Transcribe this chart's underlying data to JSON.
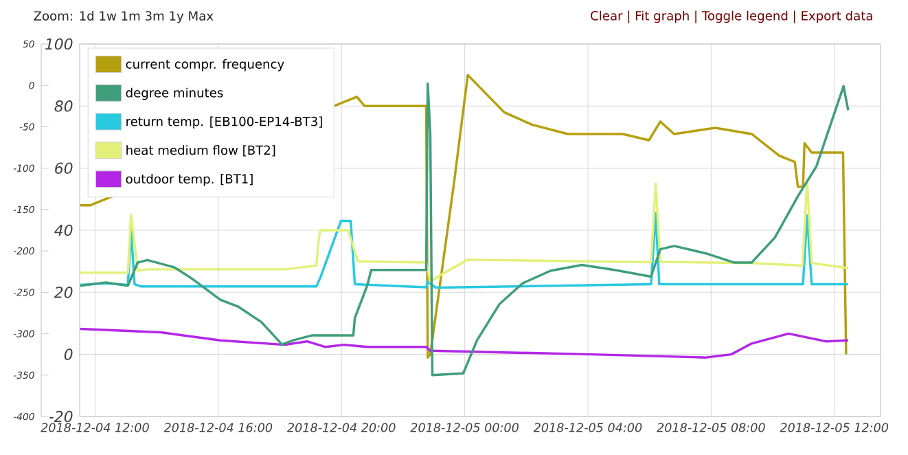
{
  "chart_data": {
    "type": "line",
    "annotations": [
      "Zoom: 1d 1w 1m 3m 1y Max",
      "Clear | Fit graph | Toggle legend | Export data"
    ],
    "xlim": [
      "2018-12-04T11:30",
      "2018-12-05T13:30"
    ],
    "xticks": [
      {
        "value": "2018-12-04T12:00",
        "label": "2018-12-04 12:00"
      },
      {
        "value": "2018-12-04T16:00",
        "label": "2018-12-04 16:00"
      },
      {
        "value": "2018-12-04T20:00",
        "label": "2018-12-04 20:00"
      },
      {
        "value": "2018-12-05T00:00",
        "label": "2018-12-05 00:00"
      },
      {
        "value": "2018-12-05T04:00",
        "label": "2018-12-05 04:00"
      },
      {
        "value": "2018-12-05T08:00",
        "label": "2018-12-05 08:00"
      },
      {
        "value": "2018-12-05T12:00",
        "label": "2018-12-05 12:00"
      }
    ],
    "ylim": [
      -20,
      100
    ],
    "yticks": [
      -20,
      0,
      20,
      40,
      60,
      80,
      100
    ],
    "y2lim": [
      -400,
      50
    ],
    "y2ticks": [
      -400,
      -350,
      -300,
      -250,
      -200,
      -150,
      -100,
      -50,
      0,
      50
    ],
    "grid": true,
    "legend": "top left",
    "line_style": "solid",
    "marker": "none",
    "series": [
      {
        "name": "current compr. frequency",
        "color": "#b5a00f",
        "x": [
          "2018-12-04T11:31",
          "2018-12-04T11:50",
          "2018-12-04T20:23",
          "2018-12-04T20:30",
          "2018-12-04T20:45",
          "2018-12-04T22:45",
          "2018-12-04T22:48",
          "2018-12-04T22:53",
          "2018-12-04T23:39",
          "2018-12-05T00:06",
          "2018-12-05T01:17",
          "2018-12-05T02:11",
          "2018-12-05T03:21",
          "2018-12-05T05:08",
          "2018-12-05T05:59",
          "2018-12-05T06:21",
          "2018-12-05T06:48",
          "2018-12-05T08:08",
          "2018-12-05T09:19",
          "2018-12-05T10:13",
          "2018-12-05T10:43",
          "2018-12-05T10:49",
          "2018-12-05T10:59",
          "2018-12-05T11:02",
          "2018-12-05T11:16",
          "2018-12-05T12:17",
          "2018-12-05T12:23"
        ],
        "values": [
          48,
          48,
          null,
          83,
          80,
          80,
          -1,
          0,
          55,
          90,
          78,
          74,
          71,
          71,
          69,
          75,
          71,
          73,
          71,
          64,
          62,
          54,
          54,
          68,
          65,
          65,
          0
        ]
      },
      {
        "name": "degree minutes",
        "color": "#3f9e7b",
        "axis": "y2",
        "x": [
          "2018-12-04T11:31",
          "2018-12-04T12:21",
          "2018-12-04T13:04",
          "2018-12-04T13:23",
          "2018-12-04T13:42",
          "2018-12-04T14:35",
          "2018-12-04T15:10",
          "2018-12-04T16:04",
          "2018-12-04T16:38",
          "2018-12-04T17:24",
          "2018-12-04T18:04",
          "2018-12-04T18:26",
          "2018-12-04T19:03",
          "2018-12-04T20:23",
          "2018-12-04T20:26",
          "2018-12-04T20:50",
          "2018-12-04T20:58",
          "2018-12-04T22:45",
          "2018-12-04T22:48",
          "2018-12-04T22:53",
          "2018-12-04T22:57",
          "2018-12-04T23:57",
          "2018-12-05T00:24",
          "2018-12-05T01:08",
          "2018-12-05T01:53",
          "2018-12-05T02:47",
          "2018-12-05T03:48",
          "2018-12-05T04:52",
          "2018-12-05T06:03",
          "2018-12-05T06:21",
          "2018-12-05T06:48",
          "2018-12-05T07:50",
          "2018-12-05T08:44",
          "2018-12-05T09:19",
          "2018-12-05T10:04",
          "2018-12-05T10:49",
          "2018-12-05T11:25",
          "2018-12-05T12:18",
          "2018-12-05T12:27"
        ],
        "values": [
          -242,
          -238,
          -242,
          -214,
          -211,
          -220,
          -234,
          -259,
          -267,
          -286,
          -313,
          -308,
          -302,
          -302,
          -281,
          -242,
          -223,
          -223,
          2,
          -59,
          -350,
          -348,
          -308,
          -264,
          -239,
          -224,
          -217,
          -223,
          -231,
          -198,
          -194,
          -203,
          -214,
          -214,
          -184,
          -134,
          -98,
          -1,
          -30
        ]
      },
      {
        "name": "return temp. [EB100-EP14-BT3]",
        "color": "#29c9e0",
        "x": [
          "2018-12-04T11:31",
          "2018-12-04T12:21",
          "2018-12-04T13:04",
          "2018-12-04T13:10",
          "2018-12-04T13:17",
          "2018-12-04T13:30",
          "2018-12-04T19:11",
          "2018-12-04T19:19",
          "2018-12-04T19:59",
          "2018-12-04T20:18",
          "2018-12-04T20:26",
          "2018-12-04T22:45",
          "2018-12-04T22:48",
          "2018-12-04T23:04",
          "2018-12-05T06:03",
          "2018-12-05T06:12",
          "2018-12-05T06:19",
          "2018-12-05T10:59",
          "2018-12-05T11:07",
          "2018-12-05T11:16",
          "2018-12-05T12:27"
        ],
        "values": [
          22.4,
          22.9,
          22.4,
          40,
          22.6,
          21.9,
          21.9,
          24.8,
          43,
          43,
          22.6,
          21.6,
          23.4,
          21.5,
          22.6,
          45.5,
          22.6,
          22.6,
          44.8,
          22.6,
          22.6
        ]
      },
      {
        "name": "heat medium flow [BT2]",
        "color": "#e2f07a",
        "x": [
          "2018-12-04T11:31",
          "2018-12-04T13:04",
          "2018-12-04T13:10",
          "2018-12-04T13:23",
          "2018-12-04T13:42",
          "2018-12-04T18:09",
          "2018-12-04T19:11",
          "2018-12-04T19:16",
          "2018-12-04T19:19",
          "2018-12-04T20:13",
          "2018-12-04T20:32",
          "2018-12-04T22:45",
          "2018-12-04T22:53",
          "2018-12-04T23:13",
          "2018-12-05T00:06",
          "2018-12-05T06:03",
          "2018-12-05T06:12",
          "2018-12-05T06:21",
          "2018-12-05T09:19",
          "2018-12-05T10:58",
          "2018-12-05T11:07",
          "2018-12-05T11:16",
          "2018-12-05T12:27"
        ],
        "values": [
          26.3,
          26.3,
          45,
          27,
          27.4,
          27.4,
          28.6,
          37.5,
          40,
          40,
          30,
          29.6,
          23.4,
          25.6,
          30.5,
          29.7,
          55,
          29.8,
          29.4,
          28.6,
          55.8,
          29.4,
          27.8
        ]
      },
      {
        "name": "outdoor temp. [BT1]",
        "color": "#b326e6",
        "x": [
          "2018-12-04T11:31",
          "2018-12-04T14:08",
          "2018-12-04T16:04",
          "2018-12-04T18:09",
          "2018-12-04T18:53",
          "2018-12-04T19:29",
          "2018-12-04T20:05",
          "2018-12-04T20:50",
          "2018-12-04T22:45",
          "2018-12-04T22:53",
          "2018-12-05T04:07",
          "2018-12-05T07:50",
          "2018-12-05T08:39",
          "2018-12-05T09:19",
          "2018-12-05T10:31",
          "2018-12-05T11:43",
          "2018-12-05T12:27"
        ],
        "values": [
          8.2,
          7.1,
          4.5,
          3.1,
          4.2,
          2.4,
          3.1,
          2.4,
          2.4,
          1.2,
          0,
          -1,
          0,
          3.5,
          6.7,
          4.2,
          4.5
        ]
      }
    ]
  }
}
